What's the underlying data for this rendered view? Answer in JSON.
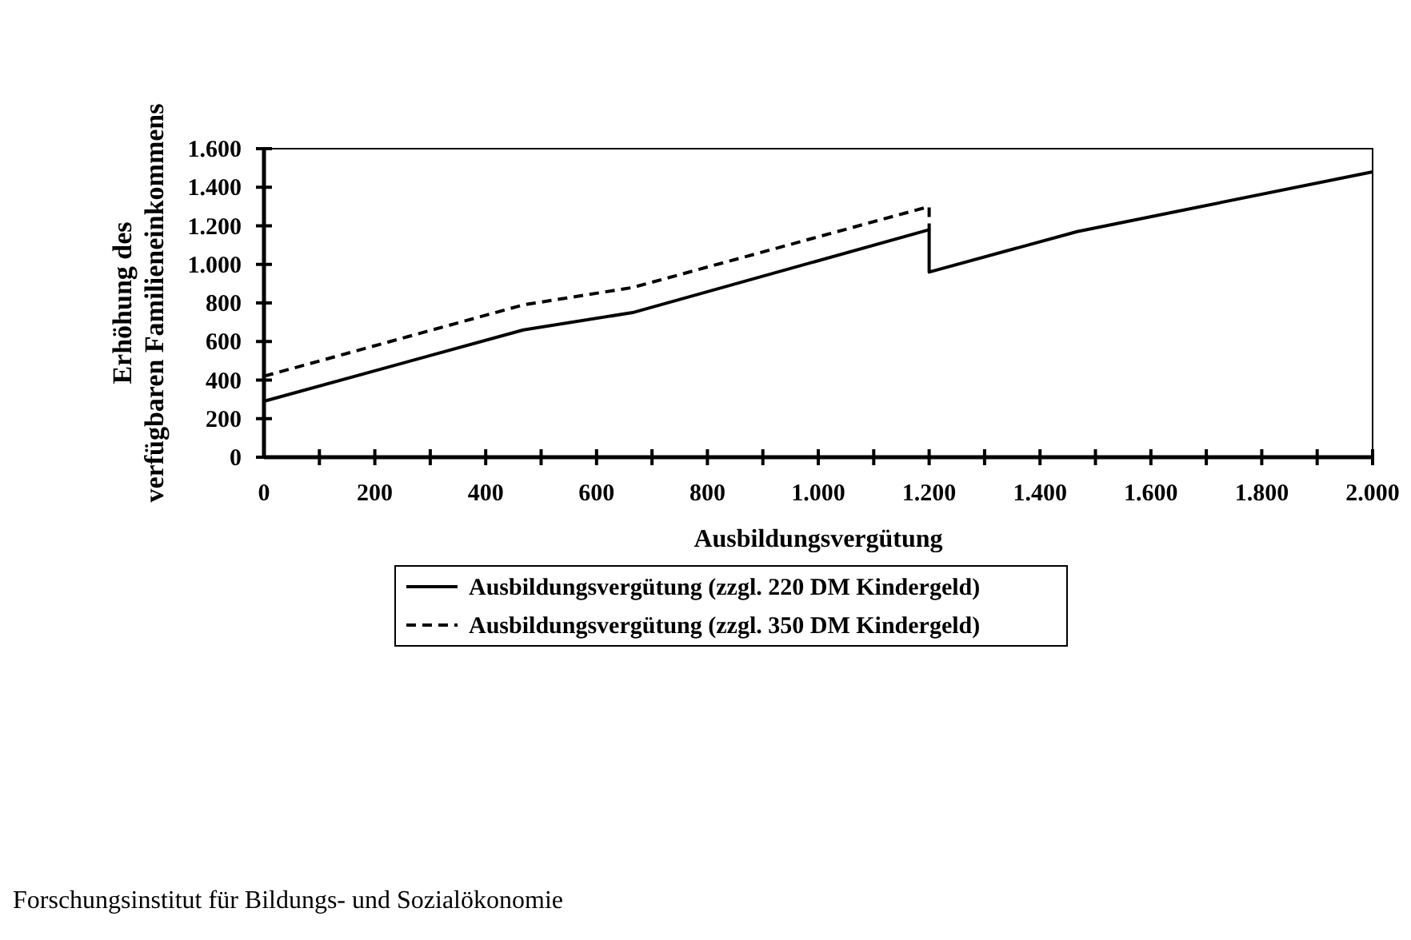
{
  "chart_data": {
    "type": "line",
    "xlabel": "Ausbildungsvergütung",
    "ylabel": "Erhöhung des verfügbaren Familieneinkommens",
    "xlim": [
      0,
      2000
    ],
    "ylim": [
      0,
      1600
    ],
    "xticks": [
      0,
      {
        "value": 100,
        "label": null
      },
      {
        "value": 200,
        "label": "200"
      },
      {
        "value": 300,
        "label": null
      },
      {
        "value": 400,
        "label": "400"
      },
      {
        "value": 500,
        "label": null
      },
      {
        "value": 600,
        "label": "600"
      },
      {
        "value": 700,
        "label": null
      },
      {
        "value": 800,
        "label": "800"
      },
      {
        "value": 900,
        "label": null
      },
      {
        "value": 1000,
        "label": "1.000"
      },
      {
        "value": 1100,
        "label": null
      },
      {
        "value": 1200,
        "label": "1.200"
      },
      {
        "value": 1300,
        "label": null
      },
      {
        "value": 1400,
        "label": "1.400"
      },
      {
        "value": 1500,
        "label": null
      },
      {
        "value": 1600,
        "label": "1.600"
      },
      {
        "value": 1700,
        "label": null
      },
      {
        "value": 1800,
        "label": "1.800"
      },
      {
        "value": 1900,
        "label": null
      },
      {
        "value": 2000,
        "label": "2.000"
      }
    ],
    "yticks": [
      0,
      200,
      400,
      600,
      800,
      {
        "value": 1000,
        "label": "1.000"
      },
      {
        "value": 1200,
        "label": "1.200"
      },
      {
        "value": 1400,
        "label": "1.400"
      },
      {
        "value": 1600,
        "label": "1.600"
      }
    ],
    "grid": false,
    "legend": "bottom",
    "marker": "none",
    "series": [
      {
        "name": "Ausbildungsvergütung (zzgl. 220 DM Kindergeld)",
        "color": "#000000",
        "line_style": "solid",
        "x": [
          0,
          468,
          665,
          1200,
          1200,
          1467,
          2000
        ],
        "values": [
          290,
          660,
          750,
          1180,
          960,
          1170,
          1480
        ]
      },
      {
        "name": "Ausbildungsvergütung (zzgl. 350 DM Kindergeld)",
        "color": "#000000",
        "line_style": "dashed",
        "x": [
          0,
          468,
          665,
          1200,
          1200
        ],
        "values": [
          420,
          790,
          880,
          1300,
          1180
        ]
      }
    ],
    "annotations": [
      "Forschungsinstitut für Bildungs- und Sozialökonomie"
    ]
  }
}
